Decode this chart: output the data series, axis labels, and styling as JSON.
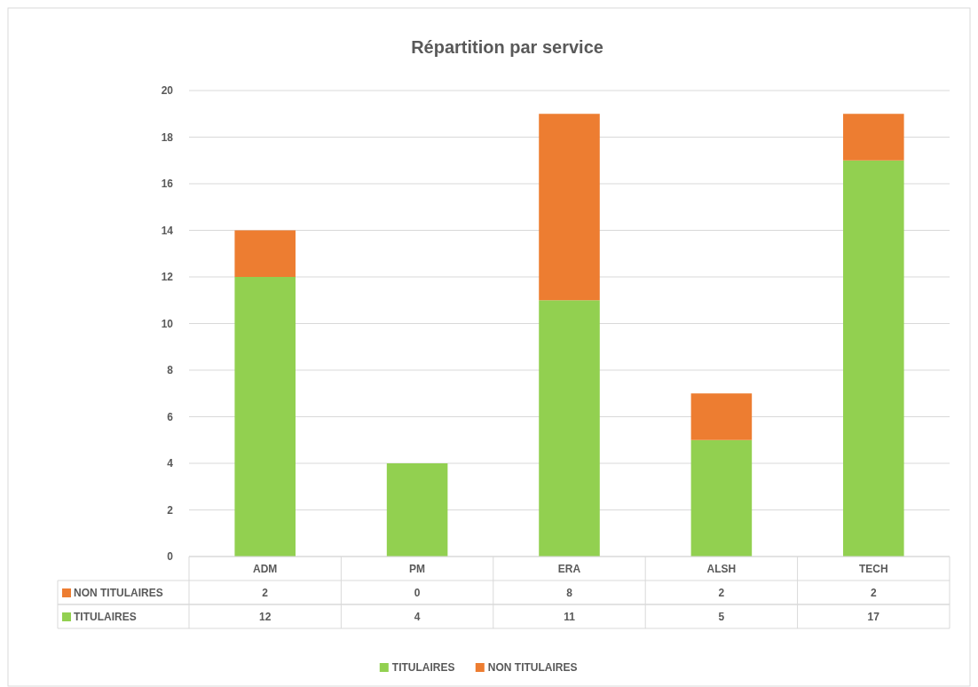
{
  "chart_data": {
    "type": "bar",
    "title": "Répartition par service",
    "categories": [
      "ADM",
      "PM",
      "ERA",
      "ALSH",
      "TECH"
    ],
    "stacked": true,
    "series": [
      {
        "name": "TITULAIRES",
        "color": "#92d050",
        "values": [
          12,
          4,
          11,
          5,
          17
        ]
      },
      {
        "name": "NON TITULAIRES",
        "color": "#ed7d31",
        "values": [
          2,
          0,
          8,
          2,
          2
        ]
      }
    ],
    "ylim": [
      0,
      20
    ],
    "yticks": [
      0,
      2,
      4,
      6,
      8,
      10,
      12,
      14,
      16,
      18,
      20
    ],
    "grid": "y",
    "legend": "bottom",
    "data_labels": true
  }
}
